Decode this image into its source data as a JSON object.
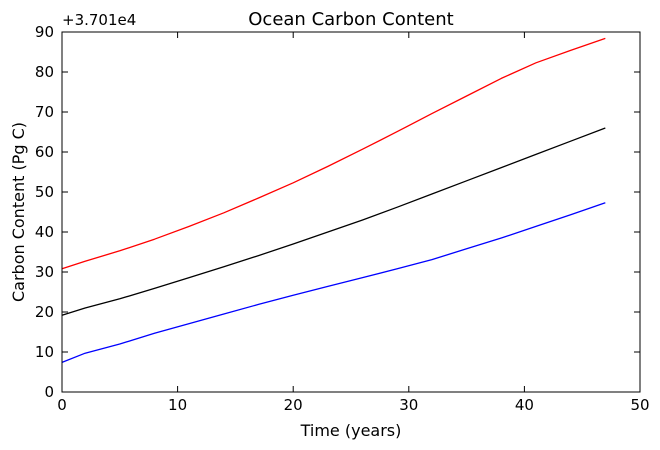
{
  "chart_data": {
    "type": "line",
    "title": "Ocean Carbon Content",
    "xlabel": "Time (years)",
    "ylabel": "Carbon Content (Pg C)",
    "y_offset_label": "+3.701e4",
    "xlim": [
      0,
      50
    ],
    "ylim": [
      0,
      90
    ],
    "xticks": [
      0,
      10,
      20,
      30,
      40,
      50
    ],
    "yticks": [
      0,
      10,
      20,
      30,
      40,
      50,
      60,
      70,
      80,
      90
    ],
    "grid": false,
    "x": [
      0,
      2,
      5,
      8,
      11,
      14,
      17,
      20,
      23,
      26,
      29,
      32,
      35,
      38,
      41,
      44,
      47
    ],
    "series": [
      {
        "color": "#ff0000",
        "values": [
          30.8,
          32.7,
          35.3,
          38.2,
          41.4,
          44.8,
          48.5,
          52.3,
          56.4,
          60.7,
          65.1,
          69.6,
          74.0,
          78.4,
          82.3,
          85.4,
          88.4
        ]
      },
      {
        "color": "#000000",
        "values": [
          19.2,
          21.0,
          23.3,
          25.9,
          28.6,
          31.3,
          34.1,
          37.0,
          40.0,
          43.0,
          46.2,
          49.5,
          52.8,
          56.1,
          59.4,
          62.7,
          66.0
        ]
      },
      {
        "color": "#0000ff",
        "values": [
          7.4,
          9.7,
          12.0,
          14.7,
          17.1,
          19.5,
          21.9,
          24.2,
          26.4,
          28.6,
          30.8,
          33.1,
          35.8,
          38.5,
          41.4,
          44.3,
          47.3
        ]
      }
    ]
  }
}
